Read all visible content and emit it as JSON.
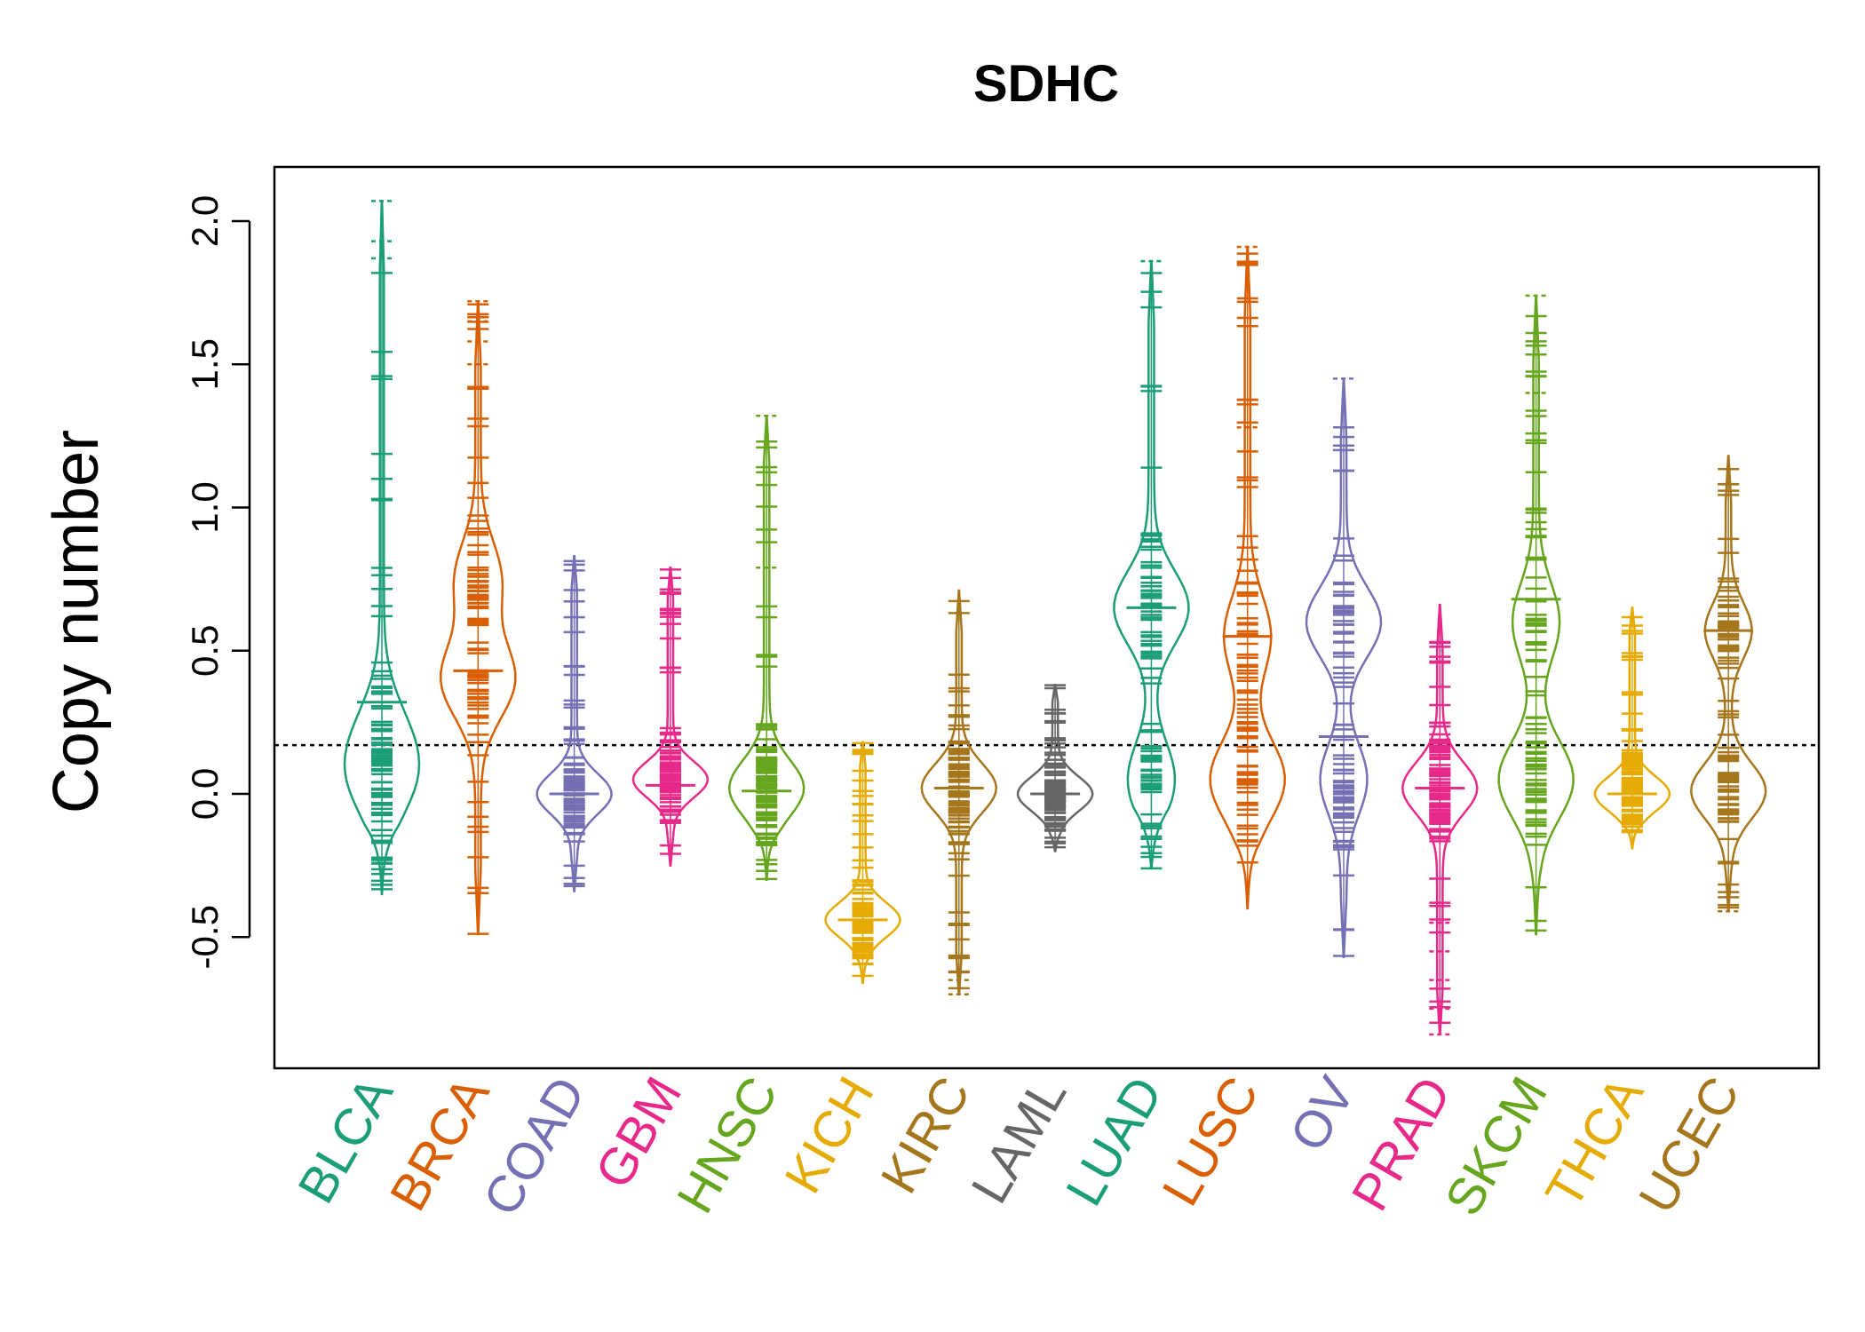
{
  "chart_data": {
    "type": "beanplot",
    "title": "SDHC",
    "xlabel": "",
    "ylabel": "Copy number",
    "ylim": [
      -0.95,
      2.2
    ],
    "yticks": [
      -0.5,
      0.0,
      0.5,
      1.0,
      1.5,
      2.0
    ],
    "ytick_labels": [
      "-0.5",
      "0.0",
      "0.5",
      "1.0",
      "1.5",
      "2.0"
    ],
    "reference_line": 0.17,
    "categories": [
      "BLCA",
      "BRCA",
      "COAD",
      "GBM",
      "HNSC",
      "KICH",
      "KIRC",
      "LAML",
      "LUAD",
      "LUSC",
      "OV",
      "PRAD",
      "SKCM",
      "THCA",
      "UCEC"
    ],
    "colors": [
      "#1B9E77",
      "#D95F02",
      "#7570B3",
      "#E7298A",
      "#66A61E",
      "#E6AB02",
      "#A6761D",
      "#666666",
      "#1B9E77",
      "#D95F02",
      "#7570B3",
      "#E7298A",
      "#66A61E",
      "#E6AB02",
      "#A6761D"
    ],
    "series": [
      {
        "name": "BLCA",
        "min": -0.35,
        "max": 2.07,
        "mean": 0.32,
        "modes": [
          0.05,
          0.22
        ],
        "outliers": [
          1.87,
          1.93,
          2.07
        ]
      },
      {
        "name": "BRCA",
        "min": -0.49,
        "max": 1.72,
        "mean": 0.43,
        "modes": [
          0.4,
          0.75
        ],
        "outliers": [
          1.5,
          1.58,
          1.65,
          1.72
        ]
      },
      {
        "name": "COAD",
        "min": -0.34,
        "max": 0.83,
        "mean": 0.0,
        "modes": [
          0.0
        ],
        "outliers": []
      },
      {
        "name": "GBM",
        "min": -0.25,
        "max": 0.79,
        "mean": 0.03,
        "modes": [
          0.05
        ],
        "outliers": []
      },
      {
        "name": "HNSC",
        "min": -0.3,
        "max": 1.32,
        "mean": 0.01,
        "modes": [
          0.02
        ],
        "outliers": [
          0.79,
          1.32
        ]
      },
      {
        "name": "KICH",
        "min": -0.66,
        "max": 0.18,
        "mean": -0.44,
        "modes": [
          -0.44
        ],
        "outliers": []
      },
      {
        "name": "KIRC",
        "min": -0.7,
        "max": 0.71,
        "mean": 0.02,
        "modes": [
          0.02
        ],
        "outliers": [
          -0.65,
          -0.7
        ]
      },
      {
        "name": "LAML",
        "min": -0.2,
        "max": 0.38,
        "mean": 0.0,
        "modes": [
          0.0
        ],
        "outliers": []
      },
      {
        "name": "LUAD",
        "min": -0.26,
        "max": 1.86,
        "mean": 0.65,
        "modes": [
          0.65,
          0.05
        ],
        "outliers": [
          1.86
        ]
      },
      {
        "name": "LUSC",
        "min": -0.4,
        "max": 1.91,
        "mean": 0.55,
        "modes": [
          0.05,
          0.55
        ],
        "outliers": [
          1.28,
          1.91
        ]
      },
      {
        "name": "OV",
        "min": -0.57,
        "max": 1.45,
        "mean": 0.2,
        "modes": [
          0.6,
          0.05
        ],
        "outliers": [
          1.45
        ]
      },
      {
        "name": "PRAD",
        "min": -0.84,
        "max": 0.66,
        "mean": 0.02,
        "modes": [
          0.02
        ],
        "outliers": [
          -0.45,
          -0.55,
          -0.65,
          -0.75,
          -0.84
        ]
      },
      {
        "name": "SKCM",
        "min": -0.49,
        "max": 1.74,
        "mean": 0.68,
        "modes": [
          0.05,
          0.6
        ],
        "outliers": [
          1.4,
          1.74
        ]
      },
      {
        "name": "THCA",
        "min": -0.19,
        "max": 0.65,
        "mean": 0.0,
        "modes": [
          0.0
        ],
        "outliers": []
      },
      {
        "name": "UCEC",
        "min": -0.41,
        "max": 1.18,
        "mean": 0.57,
        "modes": [
          0.01,
          0.57
        ],
        "outliers": [
          -0.41
        ]
      }
    ]
  }
}
